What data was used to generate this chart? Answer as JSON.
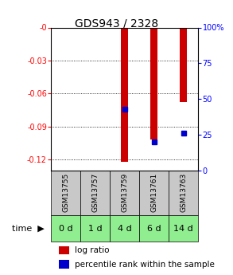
{
  "title": "GDS943 / 2328",
  "samples": [
    "GSM13755",
    "GSM13757",
    "GSM13759",
    "GSM13761",
    "GSM13763"
  ],
  "time_labels": [
    "0 d",
    "1 d",
    "4 d",
    "6 d",
    "14 d"
  ],
  "log_ratios": [
    0.0,
    0.0,
    -0.122,
    -0.102,
    -0.068
  ],
  "percentile_ranks": [
    null,
    null,
    43,
    20,
    26
  ],
  "ylim_left": [
    -0.13,
    0.0
  ],
  "ylim_right": [
    0,
    100
  ],
  "left_ticks": [
    0.0,
    -0.03,
    -0.06,
    -0.09,
    -0.12
  ],
  "right_ticks": [
    0,
    25,
    50,
    75,
    100
  ],
  "left_tick_labels": [
    "-0",
    "-0.03",
    "-0.06",
    "-0.09",
    "-0.12"
  ],
  "right_tick_labels": [
    "0",
    "25",
    "50",
    "75",
    "100%"
  ],
  "bar_color": "#CC0000",
  "dot_color": "#0000CC",
  "cell_bg_gray": "#C8C8C8",
  "cell_bg_green": "#90EE90",
  "title_fontsize": 10,
  "tick_fontsize": 7,
  "label_fontsize": 7.5,
  "sample_fontsize": 6.5,
  "time_fontsize": 8,
  "bar_width": 0.25
}
